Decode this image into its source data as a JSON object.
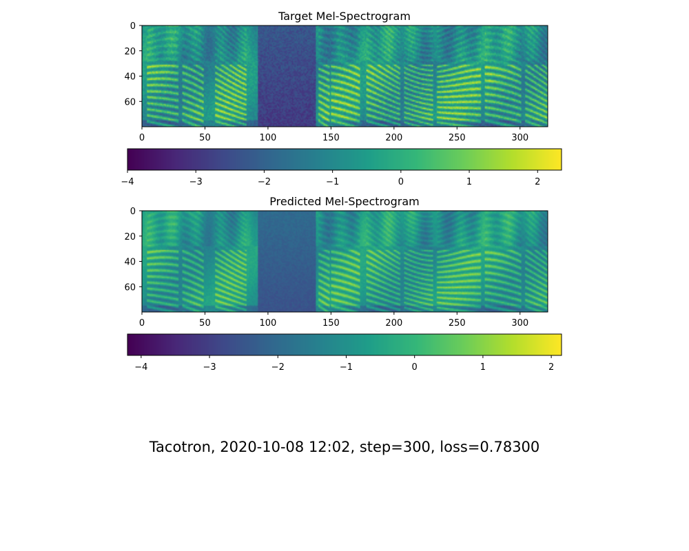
{
  "chart_data": [
    {
      "type": "heatmap",
      "title": "Target Mel-Spectrogram",
      "xlabel": "",
      "ylabel": "",
      "xlim": [
        0,
        322
      ],
      "ylim": [
        80,
        0
      ],
      "xticks": [
        0,
        50,
        100,
        150,
        200,
        250,
        300
      ],
      "yticks": [
        0,
        20,
        40,
        60
      ],
      "frames": 322,
      "mel_bins": 80,
      "colormap": "viridis",
      "colorbar": {
        "range": [
          -4,
          2.35
        ],
        "ticks": [
          -4,
          -3,
          -2,
          -1,
          0,
          1,
          2
        ]
      },
      "silence_frames": [
        92,
        137
      ],
      "voiced_segments": [
        [
          4,
          28
        ],
        [
          32,
          48
        ],
        [
          58,
          82
        ],
        [
          140,
          148
        ],
        [
          150,
          172
        ],
        [
          178,
          204
        ],
        [
          208,
          230
        ],
        [
          234,
          268
        ],
        [
          272,
          300
        ],
        [
          304,
          322
        ]
      ]
    },
    {
      "type": "heatmap",
      "title": "Predicted Mel-Spectrogram",
      "xlabel": "",
      "ylabel": "",
      "xlim": [
        0,
        322
      ],
      "ylim": [
        80,
        0
      ],
      "xticks": [
        0,
        50,
        100,
        150,
        200,
        250,
        300
      ],
      "yticks": [
        0,
        20,
        40,
        60
      ],
      "frames": 322,
      "mel_bins": 80,
      "colormap": "viridis",
      "colorbar": {
        "range": [
          -4.2,
          2.15
        ],
        "ticks": [
          -4,
          -3,
          -2,
          -1,
          0,
          1,
          2
        ]
      },
      "silence_frames": [
        92,
        137
      ],
      "voiced_segments": [
        [
          4,
          28
        ],
        [
          32,
          48
        ],
        [
          58,
          82
        ],
        [
          140,
          148
        ],
        [
          150,
          172
        ],
        [
          178,
          204
        ],
        [
          208,
          230
        ],
        [
          234,
          268
        ],
        [
          272,
          300
        ],
        [
          304,
          322
        ]
      ]
    }
  ],
  "figure_caption": "Tacotron, 2020-10-08 12:02, step=300, loss=0.78300"
}
